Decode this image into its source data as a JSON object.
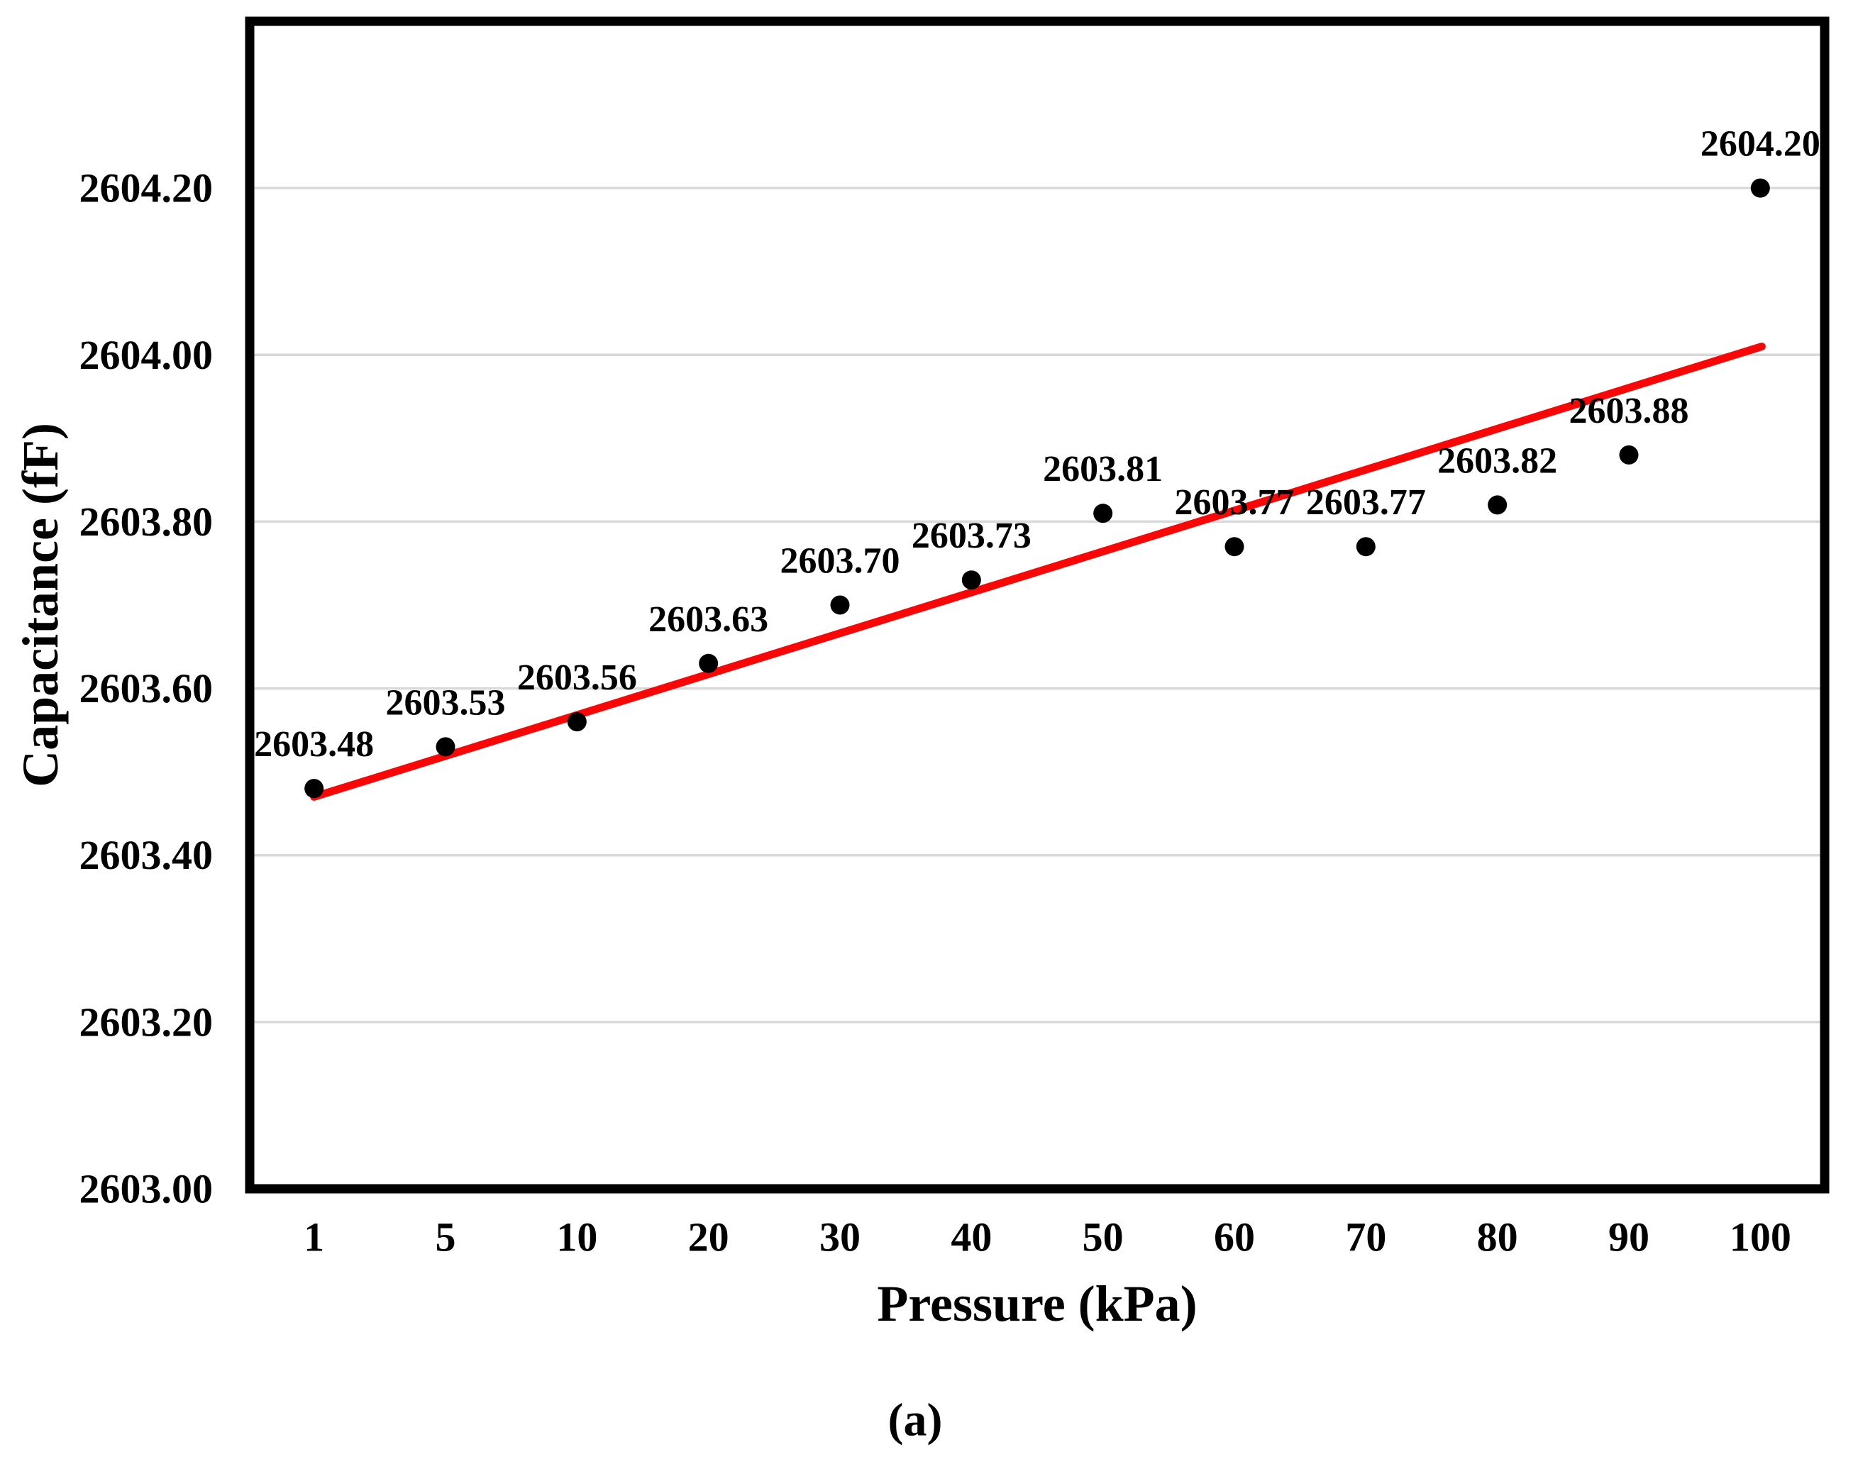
{
  "figure": {
    "caption": "(a)"
  },
  "chart_data": {
    "type": "scatter",
    "title": "",
    "xlabel": "Pressure (kPa)",
    "ylabel": "Capacitance (fF)",
    "x_tick_labels": [
      "1",
      "5",
      "10",
      "20",
      "30",
      "40",
      "50",
      "60",
      "70",
      "80",
      "90",
      "100"
    ],
    "x_values_kpa": [
      1,
      5,
      10,
      20,
      30,
      40,
      50,
      60,
      70,
      80,
      90,
      100
    ],
    "series": [
      {
        "name": "capacitance-vs-pressure",
        "marker": "filled-circle",
        "color": "#000000",
        "values": [
          2603.48,
          2603.53,
          2603.56,
          2603.63,
          2603.7,
          2603.73,
          2603.81,
          2603.77,
          2603.77,
          2603.82,
          2603.88,
          2604.2
        ],
        "point_labels": [
          "2603.48",
          "2603.53",
          "2603.56",
          "2603.63",
          "2603.70",
          "2603.73",
          "2603.81",
          "2603.77",
          "2603.77",
          "2603.82",
          "2603.88",
          "2604.20"
        ]
      }
    ],
    "trendline": {
      "type": "linear",
      "color": "#f90606",
      "start_value": 2603.47,
      "end_value": 2604.01
    },
    "y_axis": {
      "min": 2603.0,
      "max": 2604.4,
      "tick_step": 0.2,
      "tick_labels": [
        "2603.00",
        "2603.20",
        "2603.40",
        "2603.60",
        "2603.80",
        "2604.00",
        "2604.20"
      ]
    },
    "grid": {
      "horizontal": true,
      "vertical": false,
      "color": "#d9d9d9"
    },
    "plot_border_color": "#000000",
    "legend": "none"
  }
}
